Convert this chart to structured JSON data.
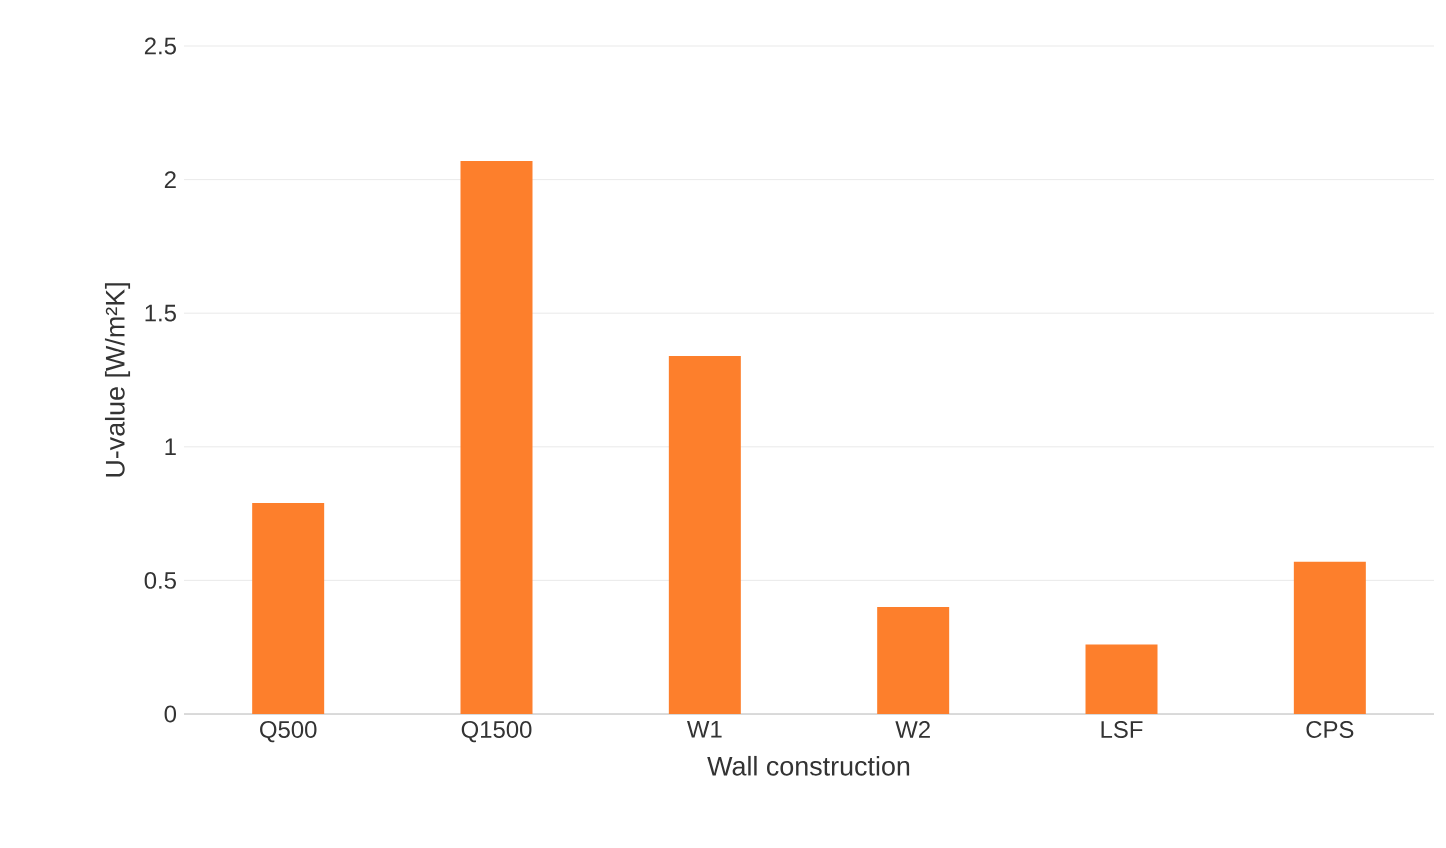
{
  "chart_data": {
    "type": "bar",
    "xlabel": "Wall construction",
    "ylabel": "U-value [W/m²K]",
    "categories": [
      "Q500",
      "Q1500",
      "W1",
      "W2",
      "LSF",
      "CPS"
    ],
    "values": [
      0.79,
      2.07,
      1.34,
      0.4,
      0.26,
      0.57
    ],
    "color": "#fd7f2c",
    "ylim": [
      0,
      2.5
    ],
    "yticks": [
      0,
      0.5,
      1,
      1.5,
      2,
      2.5
    ],
    "grid": "y"
  }
}
